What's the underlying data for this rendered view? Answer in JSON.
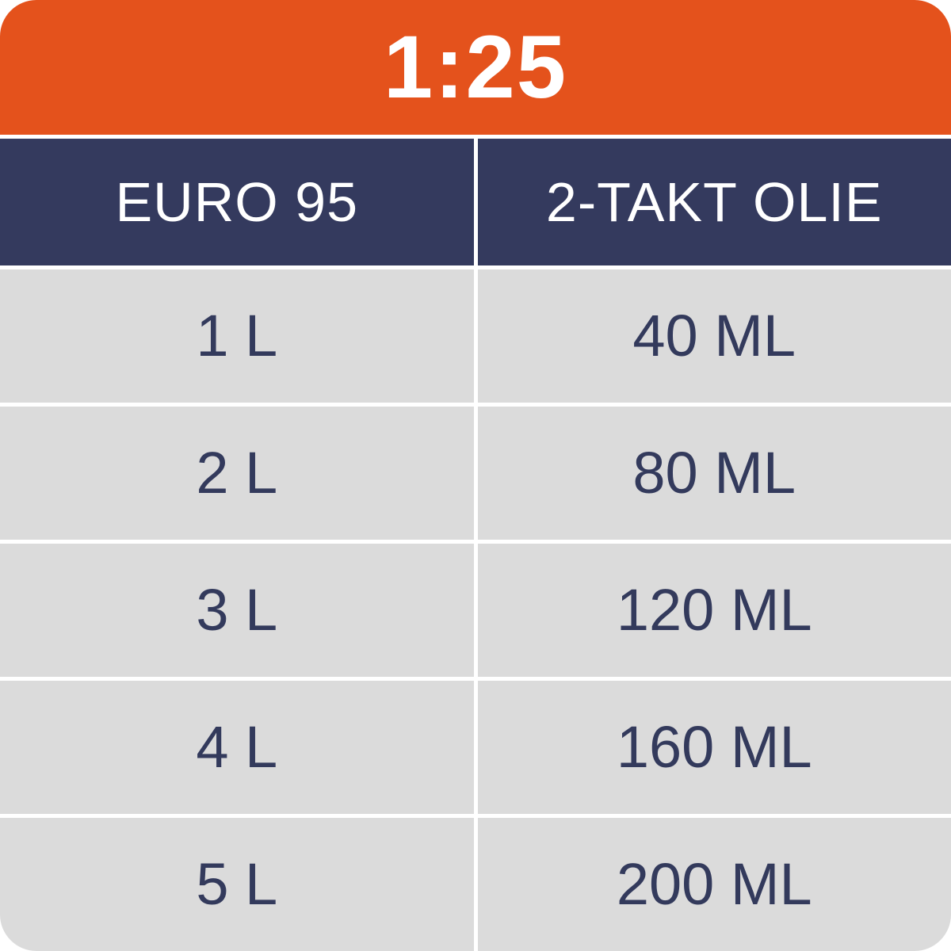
{
  "title": "1:25",
  "colors": {
    "banner_orange": "#E4521C",
    "header_navy": "#343A5E",
    "row_gray": "#DBDBDB",
    "data_text_navy": "#333A5C",
    "header_text": "#FFFFFF",
    "gutter_white": "#FFFFFF"
  },
  "table": {
    "columns": [
      {
        "label": "EURO 95"
      },
      {
        "label": "2-TAKT OLIE"
      }
    ],
    "rows": [
      {
        "fuel": "1 L",
        "oil": "40 ML"
      },
      {
        "fuel": "2 L",
        "oil": "80 ML"
      },
      {
        "fuel": "3 L",
        "oil": "120 ML"
      },
      {
        "fuel": "4 L",
        "oil": "160 ML"
      },
      {
        "fuel": "5 L",
        "oil": "200 ML"
      }
    ]
  },
  "chart_data": {
    "type": "table",
    "title": "1:25",
    "columns": [
      "EURO 95",
      "2-TAKT OLIE"
    ],
    "rows": [
      [
        "1 L",
        "40 ML"
      ],
      [
        "2 L",
        "80 ML"
      ],
      [
        "3 L",
        "120 ML"
      ],
      [
        "4 L",
        "160 ML"
      ],
      [
        "5 L",
        "200 ML"
      ]
    ],
    "mix_ratio": "1:25",
    "fuel_liters": [
      1,
      2,
      3,
      4,
      5
    ],
    "oil_ml": [
      40,
      80,
      120,
      160,
      200
    ]
  }
}
